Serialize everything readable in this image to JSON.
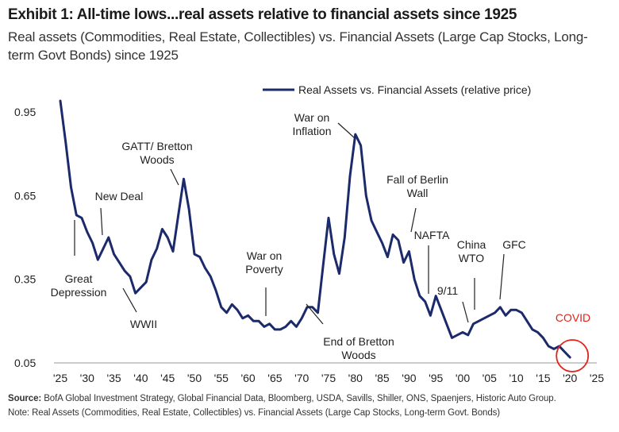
{
  "header": {
    "title": "Exhibit 1: All-time lows...real assets relative to financial assets since 1925",
    "subtitle": "Real assets (Commodities, Real Estate, Collectibles) vs. Financial Assets (Large Cap Stocks, Long-term Govt Bonds) since 1925"
  },
  "footer": {
    "source_label": "Source:",
    "source_text": " BofA Global Investment Strategy, Global Financial Data, Bloomberg, USDA, Savills, Shiller, ONS, Spaenjers, Historic Auto Group.",
    "note": "Note: Real Assets (Commodities, Real Estate, Collectibles) vs. Financial Assets (Large Cap Stocks, Long-term Govt. Bonds)"
  },
  "colors": {
    "line": "#1b2a6b",
    "highlight": "#e2231a",
    "text": "#1f1f1f"
  },
  "chart_data": {
    "type": "line",
    "title": "",
    "xlabel": "",
    "ylabel": "",
    "legend_position": "top-right",
    "xlim": [
      1925,
      2025
    ],
    "ylim": [
      0.05,
      1.0
    ],
    "xticks": [
      "'25",
      "'30",
      "'35",
      "'40",
      "'45",
      "'50",
      "'55",
      "'60",
      "'65",
      "'70",
      "'75",
      "'80",
      "'85",
      "'90",
      "'95",
      "'00",
      "'05",
      "'10",
      "'15",
      "'20",
      "'25"
    ],
    "xtick_values": [
      1925,
      1930,
      1935,
      1940,
      1945,
      1950,
      1955,
      1960,
      1965,
      1970,
      1975,
      1980,
      1985,
      1990,
      1995,
      2000,
      2005,
      2010,
      2015,
      2020,
      2025
    ],
    "yticks": [
      "0.95",
      "0.65",
      "0.35",
      "0.05"
    ],
    "ytick_values": [
      0.95,
      0.65,
      0.35,
      0.05
    ],
    "series": [
      {
        "name": "Real Assets vs. Financial Assets (relative price)",
        "x": [
          1925,
          1926,
          1927,
          1928,
          1929,
          1930,
          1931,
          1932,
          1933,
          1934,
          1935,
          1936,
          1937,
          1938,
          1939,
          1940,
          1941,
          1942,
          1943,
          1944,
          1945,
          1946,
          1947,
          1948,
          1949,
          1950,
          1951,
          1952,
          1953,
          1954,
          1955,
          1956,
          1957,
          1958,
          1959,
          1960,
          1961,
          1962,
          1963,
          1964,
          1965,
          1966,
          1967,
          1968,
          1969,
          1970,
          1971,
          1972,
          1973,
          1974,
          1975,
          1976,
          1977,
          1978,
          1979,
          1980,
          1981,
          1982,
          1983,
          1984,
          1985,
          1986,
          1987,
          1988,
          1989,
          1990,
          1991,
          1992,
          1993,
          1994,
          1995,
          1996,
          1997,
          1998,
          1999,
          2000,
          2001,
          2002,
          2003,
          2004,
          2005,
          2006,
          2007,
          2008,
          2009,
          2010,
          2011,
          2012,
          2013,
          2014,
          2015,
          2016,
          2017,
          2018,
          2019,
          2020
        ],
        "y": [
          0.99,
          0.84,
          0.68,
          0.58,
          0.57,
          0.52,
          0.48,
          0.42,
          0.46,
          0.5,
          0.44,
          0.41,
          0.38,
          0.36,
          0.3,
          0.32,
          0.34,
          0.42,
          0.46,
          0.53,
          0.5,
          0.45,
          0.58,
          0.71,
          0.6,
          0.44,
          0.43,
          0.39,
          0.36,
          0.31,
          0.25,
          0.23,
          0.26,
          0.24,
          0.21,
          0.22,
          0.2,
          0.2,
          0.18,
          0.19,
          0.17,
          0.17,
          0.18,
          0.2,
          0.18,
          0.21,
          0.25,
          0.25,
          0.23,
          0.4,
          0.57,
          0.44,
          0.37,
          0.5,
          0.72,
          0.87,
          0.83,
          0.65,
          0.56,
          0.52,
          0.48,
          0.43,
          0.51,
          0.49,
          0.41,
          0.45,
          0.35,
          0.29,
          0.27,
          0.22,
          0.29,
          0.24,
          0.19,
          0.14,
          0.15,
          0.16,
          0.15,
          0.19,
          0.2,
          0.21,
          0.22,
          0.23,
          0.25,
          0.22,
          0.24,
          0.24,
          0.23,
          0.2,
          0.17,
          0.16,
          0.14,
          0.11,
          0.1,
          0.11,
          0.09,
          0.07
        ]
      }
    ],
    "annotations": [
      {
        "text": "Great\nDepression",
        "x": 1928,
        "y": 0.42
      },
      {
        "text": "New Deal",
        "x": 1933,
        "y": 0.51
      },
      {
        "text": "WWII",
        "x": 1939,
        "y": 0.31
      },
      {
        "text": "GATT/ Bretton\nWoods",
        "x": 1948,
        "y": 0.7
      },
      {
        "text": "War on\nPoverty",
        "x": 1964,
        "y": 0.19
      },
      {
        "text": "End of Bretton\nWoods",
        "x": 1971,
        "y": 0.22
      },
      {
        "text": "War on\nInflation",
        "x": 1980,
        "y": 0.86
      },
      {
        "text": "Fall of Berlin\nWall",
        "x": 1989,
        "y": 0.43
      },
      {
        "text": "NAFTA",
        "x": 1994,
        "y": 0.29
      },
      {
        "text": "9/11",
        "x": 2001,
        "y": 0.15
      },
      {
        "text": "China\nWTO",
        "x": 2001,
        "y": 0.19
      },
      {
        "text": "GFC",
        "x": 2007,
        "y": 0.25
      },
      {
        "text": "COVID",
        "x": 2020,
        "y": 0.07
      }
    ]
  }
}
